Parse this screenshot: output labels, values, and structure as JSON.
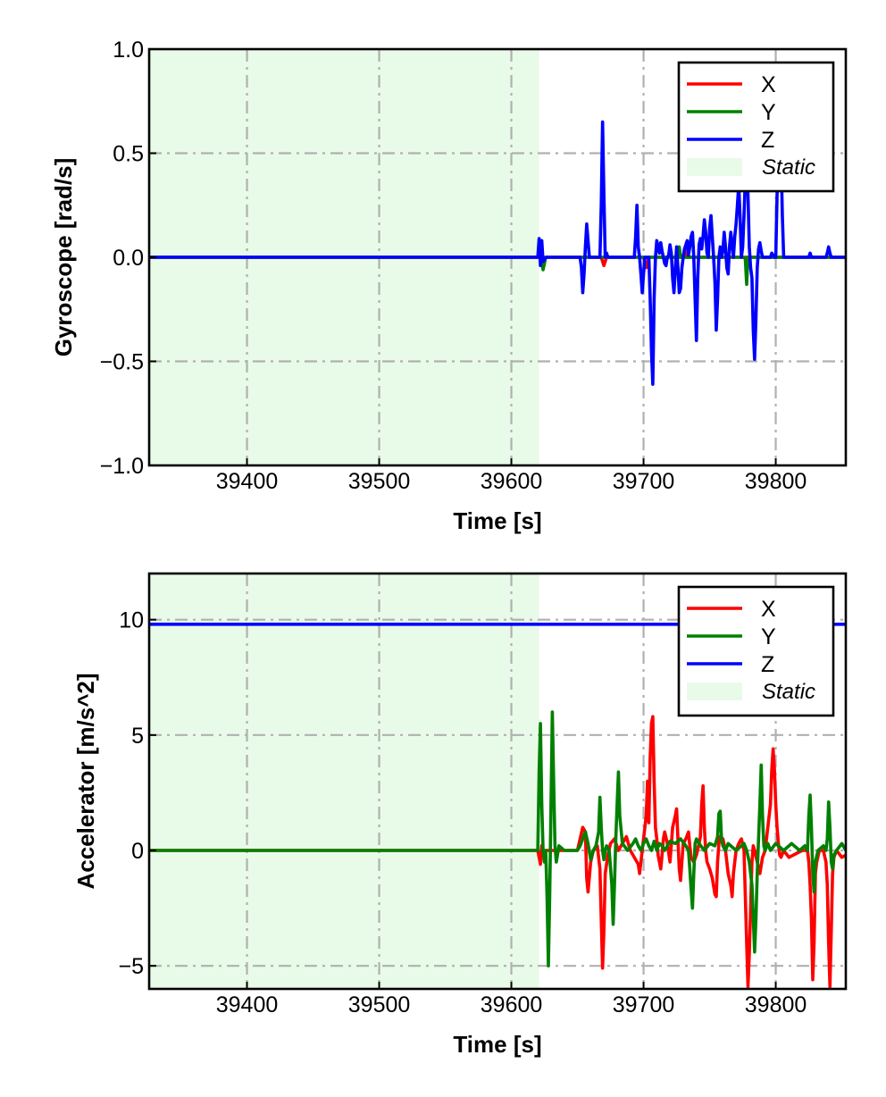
{
  "chart_data": [
    {
      "type": "line",
      "title": "",
      "xlabel": "Time [s]",
      "ylabel": "Gyroscope [rad/s]",
      "xlim": [
        39326,
        39853
      ],
      "ylim": [
        -1.0,
        1.0
      ],
      "xticks": [
        39400,
        39500,
        39600,
        39700,
        39800
      ],
      "xtick_labels": [
        "39400",
        "39500",
        "39600",
        "39700",
        "39800"
      ],
      "yticks": [
        -1.0,
        -0.5,
        0.0,
        0.5,
        1.0
      ],
      "ytick_labels": [
        "−1.0",
        "−0.5",
        "0.0",
        "0.5",
        "1.0"
      ],
      "grid": true,
      "legend_position": "top-right",
      "static_region": {
        "label": "Static",
        "x_start": 39326,
        "x_end": 39621,
        "color": "#e8fbe8"
      },
      "series": [
        {
          "name": "X",
          "color": "#ff0000",
          "x": [
            39326,
            39620,
            39622,
            39624,
            39626,
            39660,
            39668,
            39670,
            39672,
            39700,
            39702,
            39704,
            39730,
            39731,
            39732,
            39770,
            39800,
            39853
          ],
          "y": [
            0.0,
            0.0,
            0.04,
            -0.03,
            0.0,
            0.0,
            0.0,
            -0.04,
            0.0,
            0.0,
            -0.05,
            0.0,
            0.0,
            0.04,
            0.0,
            0.0,
            0.0,
            0.0
          ]
        },
        {
          "name": "Y",
          "color": "#008000",
          "x": [
            39326,
            39620,
            39622,
            39624,
            39626,
            39700,
            39726,
            39727,
            39728,
            39776,
            39777,
            39778,
            39779,
            39853
          ],
          "y": [
            0.0,
            0.0,
            0.03,
            -0.06,
            0.0,
            0.0,
            0.0,
            0.05,
            0.0,
            0.0,
            -0.01,
            -0.13,
            0.0,
            0.0
          ]
        },
        {
          "name": "Z",
          "color": "#0000ff",
          "x": [
            39326,
            39620,
            39621,
            39622,
            39623,
            39624,
            39626,
            39652,
            39653,
            39654,
            39655,
            39656,
            39657,
            39658,
            39659,
            39660,
            39667,
            39668,
            39669,
            39670,
            39671,
            39672,
            39673,
            39693,
            39694,
            39695,
            39696,
            39697,
            39698,
            39699,
            39700,
            39701,
            39702,
            39704,
            39705,
            39706,
            39707,
            39708,
            39709,
            39710,
            39711,
            39712,
            39713,
            39714,
            39715,
            39716,
            39717,
            39718,
            39719,
            39720,
            39721,
            39722,
            39723,
            39724,
            39725,
            39726,
            39727,
            39728,
            39729,
            39730,
            39731,
            39732,
            39733,
            39734,
            39735,
            39736,
            39737,
            39738,
            39739,
            39740,
            39741,
            39742,
            39743,
            39744,
            39745,
            39746,
            39747,
            39748,
            39749,
            39750,
            39751,
            39752,
            39753,
            39754,
            39755,
            39756,
            39757,
            39758,
            39759,
            39760,
            39761,
            39762,
            39763,
            39764,
            39765,
            39766,
            39767,
            39768,
            39769,
            39770,
            39771,
            39772,
            39773,
            39774,
            39775,
            39776,
            39777,
            39778,
            39779,
            39780,
            39781,
            39782,
            39783,
            39784,
            39785,
            39786,
            39787,
            39788,
            39789,
            39790,
            39795,
            39796,
            39797,
            39798,
            39799,
            39800,
            39801,
            39802,
            39803,
            39804,
            39805,
            39806,
            39807,
            39808,
            39809,
            39820,
            39824,
            39825,
            39826,
            39827,
            39828,
            39829,
            39830,
            39831,
            39832,
            39838,
            39839,
            39840,
            39841,
            39842,
            39843,
            39844,
            39845,
            39846,
            39848,
            39849,
            39850,
            39851,
            39852,
            39853
          ],
          "y": [
            0.0,
            0.0,
            0.09,
            -0.04,
            0.08,
            -0.02,
            0.0,
            0.0,
            -0.05,
            -0.17,
            -0.08,
            0.05,
            0.16,
            0.08,
            0.0,
            0.0,
            0.0,
            0.25,
            0.65,
            0.3,
            0.0,
            0.02,
            0.0,
            0.0,
            0.1,
            0.25,
            0.05,
            0.0,
            -0.08,
            -0.17,
            -0.08,
            0.0,
            0.0,
            0.0,
            -0.2,
            -0.45,
            -0.61,
            -0.2,
            0.0,
            0.08,
            0.05,
            0.02,
            0.07,
            0.03,
            0.0,
            -0.03,
            -0.04,
            0.0,
            0.01,
            0.06,
            0.02,
            -0.1,
            -0.17,
            -0.06,
            0.05,
            -0.05,
            -0.17,
            -0.15,
            -0.05,
            0.0,
            0.04,
            0.06,
            0.08,
            0.01,
            0.05,
            0.1,
            0.12,
            0.0,
            -0.2,
            -0.4,
            -0.1,
            0.06,
            0.09,
            0.04,
            0.1,
            0.18,
            0.12,
            0.02,
            0.0,
            0.14,
            0.2,
            0.1,
            0.0,
            -0.12,
            -0.35,
            -0.2,
            0.0,
            0.05,
            0.0,
            0.03,
            0.12,
            0.05,
            -0.05,
            -0.08,
            0.05,
            0.12,
            0.06,
            0.0,
            0.1,
            0.16,
            0.25,
            0.35,
            0.2,
            0.0,
            0.05,
            0.2,
            0.38,
            0.5,
            0.3,
            0.05,
            -0.05,
            -0.1,
            -0.35,
            -0.49,
            -0.3,
            -0.05,
            0.04,
            0.07,
            0.03,
            0.0,
            0.0,
            0.0,
            0.02,
            0.01,
            0.0,
            0.0,
            0.3,
            0.5,
            0.7,
            0.5,
            0.2,
            0.0,
            0.0,
            0.0,
            0.0,
            0.0,
            0.0,
            0.0,
            0.02,
            0.0,
            0.0,
            0.0,
            0.0,
            0.0,
            0.0,
            0.0,
            0.02,
            0.05,
            0.02,
            0.0,
            0.0,
            0.0,
            0.0,
            0.0,
            0.0,
            0.0,
            0.0,
            0.0,
            0.0,
            0.0
          ]
        }
      ]
    },
    {
      "type": "line",
      "title": "",
      "xlabel": "Time [s]",
      "ylabel": "Accelerator [m/s^2]",
      "xlim": [
        39326,
        39853
      ],
      "ylim": [
        -6.0,
        12.0
      ],
      "xticks": [
        39400,
        39500,
        39600,
        39700,
        39800
      ],
      "xtick_labels": [
        "39400",
        "39500",
        "39600",
        "39700",
        "39800"
      ],
      "yticks": [
        -5,
        0,
        5,
        10
      ],
      "ytick_labels": [
        "−5",
        "0",
        "5",
        "10"
      ],
      "grid": true,
      "legend_position": "top-right",
      "static_region": {
        "label": "Static",
        "x_start": 39326,
        "x_end": 39621,
        "color": "#e8fbe8"
      },
      "series": [
        {
          "name": "X",
          "color": "#ff0000",
          "x": [
            39326,
            39620,
            39621,
            39622,
            39623,
            39624,
            39626,
            39628,
            39630,
            39632,
            39650,
            39652,
            39654,
            39656,
            39657,
            39658,
            39660,
            39662,
            39665,
            39667,
            39668,
            39669,
            39670,
            39671,
            39673,
            39675,
            39678,
            39681,
            39684,
            39687,
            39690,
            39693,
            39696,
            39697,
            39698,
            39700,
            39702,
            39703,
            39704,
            39705,
            39706,
            39707,
            39708,
            39709,
            39710,
            39711,
            39712,
            39713,
            39714,
            39715,
            39716,
            39718,
            39720,
            39722,
            39724,
            39725,
            39726,
            39727,
            39728,
            39729,
            39730,
            39732,
            39734,
            39735,
            39736,
            39738,
            39740,
            39742,
            39743,
            39744,
            39745,
            39746,
            39747,
            39748,
            39750,
            39752,
            39754,
            39755,
            39756,
            39757,
            39758,
            39760,
            39762,
            39764,
            39766,
            39767,
            39768,
            39770,
            39772,
            39774,
            39776,
            39777,
            39778,
            39779,
            39780,
            39781,
            39782,
            39783,
            39784,
            39786,
            39788,
            39790,
            39792,
            39794,
            39796,
            39797,
            39798,
            39799,
            39800,
            39801,
            39802,
            39803,
            39804,
            39806,
            39810,
            39820,
            39824,
            39825,
            39826,
            39827,
            39828,
            39829,
            39830,
            39831,
            39833,
            39836,
            39838,
            39839,
            39840,
            39841,
            39842,
            39843,
            39844,
            39846,
            39850,
            39853
          ],
          "y": [
            0.0,
            0.0,
            -0.3,
            -0.6,
            0.2,
            -0.2,
            0.0,
            0.0,
            0.0,
            0.0,
            0.0,
            0.5,
            1.0,
            0.8,
            -1.2,
            -1.8,
            -0.5,
            0.0,
            0.2,
            -0.8,
            -3.0,
            -5.1,
            -3.5,
            -1.0,
            -0.2,
            0.3,
            0.5,
            0.0,
            0.3,
            0.6,
            0.0,
            -0.3,
            -0.6,
            -1.0,
            -0.5,
            0.5,
            1.5,
            3.0,
            1.2,
            4.0,
            5.5,
            5.8,
            3.0,
            1.0,
            0.5,
            -0.2,
            -0.5,
            -0.8,
            -0.2,
            0.5,
            0.8,
            0.3,
            -0.5,
            1.0,
            1.5,
            1.8,
            0.5,
            -0.8,
            -1.3,
            -0.5,
            0.3,
            0.5,
            0.8,
            0.2,
            -0.3,
            -0.5,
            -0.2,
            0.3,
            0.6,
            2.0,
            2.8,
            1.0,
            0.0,
            -0.5,
            -0.8,
            -1.2,
            -1.9,
            -2.0,
            -0.5,
            0.3,
            0.6,
            0.5,
            0.0,
            -1.0,
            -1.5,
            -2.0,
            -1.0,
            0.0,
            0.3,
            0.5,
            0.0,
            -2.0,
            -4.0,
            -5.9,
            -4.5,
            -2.5,
            -0.5,
            0.2,
            0.0,
            -0.5,
            -1.0,
            -0.3,
            0.0,
            1.0,
            2.0,
            3.5,
            4.4,
            3.5,
            2.0,
            1.0,
            0.3,
            -0.2,
            -0.3,
            0.0,
            -0.3,
            0.0,
            0.0,
            -0.5,
            -1.5,
            -3.0,
            -5.6,
            -4.0,
            -1.0,
            -0.5,
            0.0,
            0.0,
            -0.5,
            -1.5,
            -4.0,
            -5.9,
            -3.5,
            -1.0,
            -0.3,
            0.0,
            -0.3,
            -0.2
          ]
        },
        {
          "name": "Y",
          "color": "#008000",
          "x": [
            39326,
            39620,
            39621,
            39622,
            39623,
            39624,
            39625,
            39626,
            39627,
            39628,
            39629,
            39630,
            39631,
            39632,
            39633,
            39634,
            39636,
            39640,
            39645,
            39650,
            39652,
            39654,
            39656,
            39658,
            39660,
            39662,
            39664,
            39666,
            39667,
            39668,
            39669,
            39670,
            39671,
            39672,
            39674,
            39676,
            39677,
            39678,
            39679,
            39680,
            39681,
            39682,
            39684,
            39688,
            39692,
            39694,
            39696,
            39698,
            39700,
            39702,
            39704,
            39706,
            39708,
            39710,
            39712,
            39714,
            39716,
            39720,
            39724,
            39728,
            39732,
            39734,
            39735,
            39736,
            39737,
            39738,
            39739,
            39740,
            39742,
            39746,
            39750,
            39754,
            39756,
            39757,
            39758,
            39759,
            39760,
            39762,
            39764,
            39770,
            39776,
            39778,
            39780,
            39782,
            39783,
            39784,
            39785,
            39786,
            39787,
            39788,
            39789,
            39790,
            39791,
            39792,
            39794,
            39796,
            39800,
            39806,
            39812,
            39818,
            39822,
            39824,
            39825,
            39826,
            39827,
            39828,
            39829,
            39830,
            39832,
            39836,
            39838,
            39839,
            39840,
            39841,
            39842,
            39843,
            39844,
            39846,
            39850,
            39853
          ],
          "y": [
            0.0,
            0.0,
            3.4,
            5.5,
            2.0,
            0.0,
            -0.5,
            0.0,
            -2.0,
            -5.0,
            -2.0,
            2.0,
            6.0,
            3.0,
            0.2,
            -0.5,
            0.2,
            0.0,
            0.0,
            0.0,
            0.2,
            0.5,
            0.8,
            0.3,
            -0.4,
            0.0,
            0.2,
            0.8,
            2.3,
            1.0,
            0.0,
            -0.4,
            0.0,
            0.2,
            0.0,
            -1.5,
            -3.2,
            -1.5,
            0.5,
            2.0,
            3.4,
            1.5,
            0.3,
            0.0,
            0.3,
            0.5,
            0.2,
            0.0,
            0.3,
            0.5,
            0.2,
            0.0,
            0.4,
            0.0,
            0.3,
            0.2,
            0.0,
            0.4,
            0.3,
            0.5,
            0.2,
            0.0,
            -0.8,
            -1.7,
            -2.5,
            -1.0,
            0.3,
            0.5,
            0.3,
            0.0,
            0.3,
            0.2,
            0.6,
            1.6,
            1.7,
            0.5,
            0.2,
            0.0,
            0.3,
            0.0,
            0.3,
            0.0,
            -0.5,
            -1.5,
            -2.9,
            -4.4,
            -3.0,
            -1.0,
            0.5,
            2.0,
            3.7,
            1.5,
            0.2,
            0.0,
            0.3,
            0.0,
            0.3,
            0.0,
            0.3,
            0.0,
            0.2,
            0.0,
            1.5,
            2.4,
            1.0,
            -1.0,
            -1.8,
            -0.5,
            0.0,
            0.2,
            0.0,
            0.5,
            2.1,
            1.0,
            -0.5,
            -0.8,
            -0.2,
            0.0,
            0.3,
            0.0
          ]
        },
        {
          "name": "Z",
          "color": "#0000ff",
          "x": [
            39326,
            39853
          ],
          "y": [
            9.8,
            9.8
          ]
        }
      ]
    }
  ]
}
